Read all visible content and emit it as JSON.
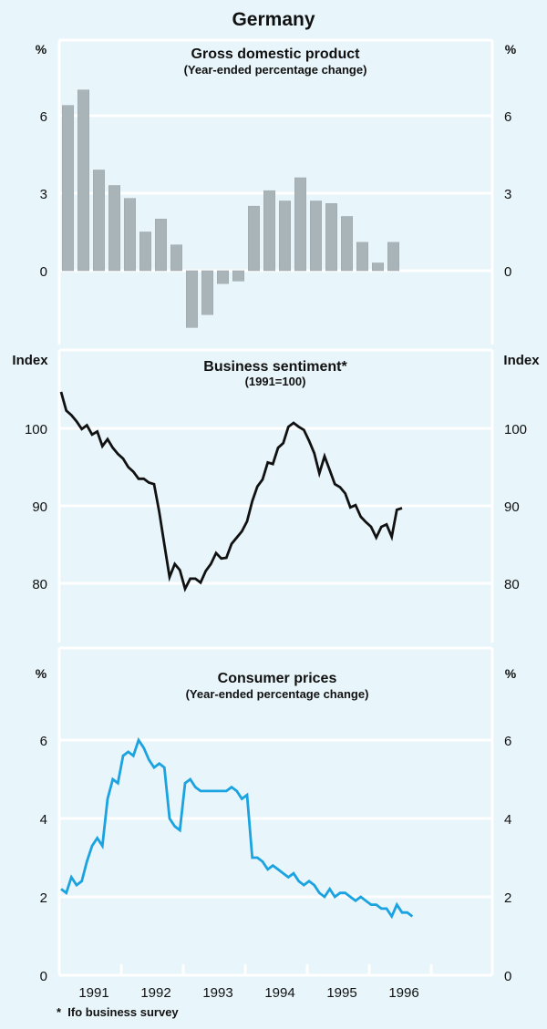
{
  "title": "Germany",
  "footnote": "*  Ifo business survey",
  "colors": {
    "background": "#e8f5fa",
    "grid": "#ffffff",
    "bar": "#a9b4b9",
    "sentiment_line": "#111111",
    "cpi_line": "#1aa3e0"
  },
  "chart_data": [
    {
      "type": "bar",
      "title": "Gross domestic product",
      "subtitle": "(Year-ended percentage change)",
      "left_unit": "%",
      "right_unit": "%",
      "ylim": [
        -2.6,
        8.8
      ],
      "yticks": [
        0,
        3,
        6
      ],
      "ytick_labels": [
        "0",
        "3",
        "6"
      ],
      "grid": true,
      "frequency": "quarterly",
      "x_start": 1991.0,
      "categories": [
        "1991Q1",
        "1991Q2",
        "1991Q3",
        "1991Q4",
        "1992Q1",
        "1992Q2",
        "1992Q3",
        "1992Q4",
        "1993Q1",
        "1993Q2",
        "1993Q3",
        "1993Q4",
        "1994Q1",
        "1994Q2",
        "1994Q3",
        "1994Q4",
        "1995Q1",
        "1995Q2",
        "1995Q3",
        "1995Q4",
        "1996Q1",
        "1996Q2"
      ],
      "values": [
        6.4,
        7.0,
        3.9,
        3.3,
        2.8,
        1.5,
        2.0,
        1.0,
        -2.2,
        -1.7,
        -0.5,
        -0.4,
        2.5,
        3.1,
        2.7,
        3.6,
        2.7,
        2.6,
        2.1,
        1.1,
        0.3,
        1.1
      ]
    },
    {
      "type": "line",
      "title": "Business sentiment*",
      "subtitle": "(1991=100)",
      "left_unit": "Index",
      "right_unit": "Index",
      "ylim": [
        75,
        110
      ],
      "yticks": [
        80,
        90,
        100
      ],
      "ytick_labels": [
        "80",
        "90",
        "100"
      ],
      "grid": true,
      "frequency": "monthly",
      "x_start": 1991.0,
      "values": [
        104.7,
        102.3,
        101.7,
        100.9,
        99.9,
        100.4,
        99.2,
        99.6,
        97.7,
        98.6,
        97.5,
        96.7,
        96.1,
        95.0,
        94.4,
        93.5,
        93.5,
        93.0,
        92.8,
        89.2,
        85.0,
        80.8,
        82.5,
        81.7,
        79.3,
        80.6,
        80.6,
        80.1,
        81.6,
        82.5,
        83.9,
        83.2,
        83.3,
        85.1,
        85.9,
        86.7,
        88.0,
        90.6,
        92.5,
        93.4,
        95.6,
        95.4,
        97.5,
        98.1,
        100.2,
        100.7,
        100.2,
        99.8,
        98.4,
        96.8,
        94.2,
        96.4,
        94.6,
        92.8,
        92.4,
        91.6,
        89.8,
        90.1,
        88.6,
        87.9,
        87.3,
        85.9,
        87.3,
        87.6,
        86.0,
        89.5,
        89.7
      ]
    },
    {
      "type": "line",
      "title": "Consumer prices",
      "subtitle": "(Year-ended percentage change)",
      "left_unit": "%",
      "right_unit": "%",
      "ylim": [
        0,
        8
      ],
      "yticks": [
        0,
        2,
        4,
        6
      ],
      "ytick_labels": [
        "0",
        "2",
        "4",
        "6"
      ],
      "grid": true,
      "frequency": "monthly",
      "x_start": 1991.0,
      "xtick_labels": [
        "1991",
        "1992",
        "1993",
        "1994",
        "1995",
        "1996"
      ],
      "values": [
        2.2,
        2.1,
        2.5,
        2.3,
        2.4,
        2.9,
        3.3,
        3.5,
        3.3,
        4.5,
        5.0,
        4.9,
        5.6,
        5.7,
        5.6,
        6.0,
        5.8,
        5.5,
        5.3,
        5.4,
        5.3,
        4.0,
        3.8,
        3.7,
        4.9,
        5.0,
        4.8,
        4.7,
        4.7,
        4.7,
        4.7,
        4.7,
        4.7,
        4.8,
        4.7,
        4.5,
        4.6,
        3.0,
        3.0,
        2.9,
        2.7,
        2.8,
        2.7,
        2.6,
        2.5,
        2.6,
        2.4,
        2.3,
        2.4,
        2.3,
        2.1,
        2.0,
        2.2,
        2.0,
        2.1,
        2.1,
        2.0,
        1.9,
        2.0,
        1.9,
        1.8,
        1.8,
        1.7,
        1.7,
        1.5,
        1.8,
        1.6,
        1.6,
        1.5
      ]
    }
  ]
}
